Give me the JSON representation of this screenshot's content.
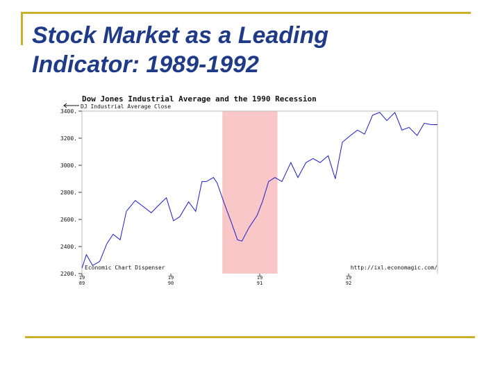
{
  "slide": {
    "title_line1": "Stock Market as a Leading",
    "title_line2": "Indicator: 1989-1992"
  },
  "chart_data": {
    "type": "line",
    "title": "Dow Jones Industrial Average and the 1990 Recession",
    "legend": "DJ Industrial Average Close",
    "source_left": "Economic Chart Dispenser",
    "source_right": "http://ixl.economagic.com/",
    "xlabel": "",
    "ylabel": "",
    "xlim": [
      1989.0,
      1993.0
    ],
    "ylim": [
      2200,
      3400
    ],
    "yticks": [
      2200,
      2400,
      2600,
      2800,
      3000,
      3200,
      3400
    ],
    "ytick_labels": [
      "2200.",
      "2400.",
      "2600.",
      "2800.",
      "3000.",
      "3200.",
      "3400."
    ],
    "xticks": [
      {
        "x": 1989,
        "line1": "19",
        "line2": "89"
      },
      {
        "x": 1990,
        "line1": "19",
        "line2": "90"
      },
      {
        "x": 1991,
        "line1": "19",
        "line2": "91"
      },
      {
        "x": 1992,
        "line1": "19",
        "line2": "92"
      }
    ],
    "recession": {
      "start": 1990.58,
      "end": 1991.2,
      "color": "#f9c7c8"
    },
    "line_color": "#1a1ad0",
    "grid": false,
    "series": [
      {
        "values": [
          [
            1989.0,
            2240
          ],
          [
            1989.05,
            2340
          ],
          [
            1989.12,
            2260
          ],
          [
            1989.2,
            2290
          ],
          [
            1989.28,
            2420
          ],
          [
            1989.35,
            2490
          ],
          [
            1989.43,
            2450
          ],
          [
            1989.5,
            2660
          ],
          [
            1989.6,
            2740
          ],
          [
            1989.68,
            2700
          ],
          [
            1989.78,
            2650
          ],
          [
            1989.87,
            2710
          ],
          [
            1989.95,
            2760
          ],
          [
            1990.03,
            2590
          ],
          [
            1990.1,
            2620
          ],
          [
            1990.2,
            2730
          ],
          [
            1990.28,
            2660
          ],
          [
            1990.35,
            2880
          ],
          [
            1990.4,
            2880
          ],
          [
            1990.48,
            2910
          ],
          [
            1990.52,
            2870
          ],
          [
            1990.6,
            2720
          ],
          [
            1990.68,
            2580
          ],
          [
            1990.75,
            2450
          ],
          [
            1990.8,
            2440
          ],
          [
            1990.88,
            2540
          ],
          [
            1990.97,
            2630
          ],
          [
            1991.03,
            2730
          ],
          [
            1991.1,
            2880
          ],
          [
            1991.17,
            2910
          ],
          [
            1991.25,
            2880
          ],
          [
            1991.35,
            3020
          ],
          [
            1991.43,
            2910
          ],
          [
            1991.52,
            3020
          ],
          [
            1991.6,
            3050
          ],
          [
            1991.68,
            3020
          ],
          [
            1991.77,
            3070
          ],
          [
            1991.85,
            2900
          ],
          [
            1991.93,
            3170
          ],
          [
            1992.02,
            3220
          ],
          [
            1992.1,
            3260
          ],
          [
            1992.18,
            3230
          ],
          [
            1992.27,
            3370
          ],
          [
            1992.35,
            3390
          ],
          [
            1992.43,
            3330
          ],
          [
            1992.52,
            3390
          ],
          [
            1992.6,
            3260
          ],
          [
            1992.68,
            3280
          ],
          [
            1992.77,
            3220
          ],
          [
            1992.85,
            3310
          ],
          [
            1992.93,
            3300
          ],
          [
            1993.0,
            3300
          ]
        ]
      }
    ]
  }
}
